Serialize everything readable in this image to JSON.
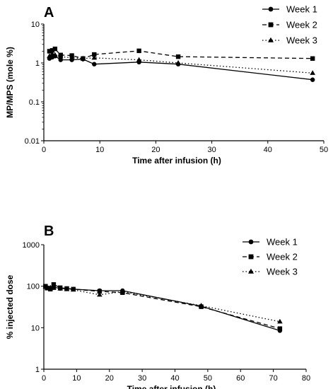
{
  "chart_data": [
    {
      "panel_label": "A",
      "type": "line",
      "xlabel": "Time after infusion (h)",
      "ylabel": "MP/MPS (mole %)",
      "xlim": [
        0,
        50
      ],
      "ylim": [
        0.01,
        10
      ],
      "yscale": "log",
      "x_ticks": [
        0,
        10,
        20,
        30,
        40,
        50
      ],
      "y_ticks": [
        0.01,
        0.1,
        1,
        10
      ],
      "y_tick_labels": [
        "0.01",
        "0.1",
        "1",
        "10"
      ],
      "grid": false,
      "legend_position": "top-right",
      "series": [
        {
          "name": "Week 1",
          "marker": "circle",
          "line": "solid",
          "color": "#000000",
          "x": [
            1,
            1.5,
            2,
            3,
            5,
            7,
            9,
            17,
            24,
            48
          ],
          "y": [
            1.3,
            1.4,
            1.5,
            1.2,
            1.2,
            1.25,
            0.93,
            1.05,
            0.93,
            0.37
          ]
        },
        {
          "name": "Week 2",
          "marker": "square",
          "line": "dashed",
          "color": "#000000",
          "x": [
            1,
            1.5,
            2,
            3,
            5,
            7,
            9,
            17,
            24,
            48
          ],
          "y": [
            2.0,
            2.1,
            2.3,
            1.6,
            1.55,
            1.3,
            1.65,
            2.05,
            1.45,
            1.3
          ]
        },
        {
          "name": "Week 3",
          "marker": "triangle",
          "line": "dotted",
          "color": "#000000",
          "x": [
            1,
            1.5,
            2,
            3,
            5,
            7,
            9,
            17,
            24,
            48
          ],
          "y": [
            1.5,
            1.7,
            1.6,
            1.45,
            1.35,
            1.3,
            1.35,
            1.2,
            1.0,
            0.55
          ]
        }
      ]
    },
    {
      "panel_label": "B",
      "type": "line",
      "xlabel": "Time after infusion (h)",
      "ylabel": "% injected dose",
      "xlim": [
        0,
        80
      ],
      "ylim": [
        1,
        1000
      ],
      "yscale": "log",
      "x_ticks": [
        0,
        10,
        20,
        30,
        40,
        50,
        60,
        70,
        80
      ],
      "y_ticks": [
        1,
        10,
        100,
        1000
      ],
      "y_tick_labels": [
        "1",
        "10",
        "100",
        "1000"
      ],
      "grid": false,
      "legend_position": "top-right",
      "series": [
        {
          "name": "Week 1",
          "marker": "circle",
          "line": "solid",
          "color": "#000000",
          "x": [
            0.5,
            1,
            2,
            3,
            5,
            7,
            9,
            17,
            24,
            48,
            72
          ],
          "y": [
            98,
            92,
            90,
            95,
            88,
            87,
            85,
            78,
            78,
            33,
            8.5
          ]
        },
        {
          "name": "Week 2",
          "marker": "square",
          "line": "dashed",
          "color": "#000000",
          "x": [
            0.5,
            1,
            2,
            3,
            5,
            7,
            9,
            17,
            24,
            48,
            72
          ],
          "y": [
            100,
            90,
            85,
            110,
            92,
            88,
            85,
            75,
            70,
            32,
            9.5
          ]
        },
        {
          "name": "Week 3",
          "marker": "triangle",
          "line": "dotted",
          "color": "#000000",
          "x": [
            0.5,
            1,
            2,
            3,
            5,
            7,
            9,
            17,
            24,
            48,
            72
          ],
          "y": [
            96,
            95,
            92,
            90,
            87,
            84,
            82,
            62,
            74,
            34,
            14
          ]
        }
      ]
    }
  ]
}
